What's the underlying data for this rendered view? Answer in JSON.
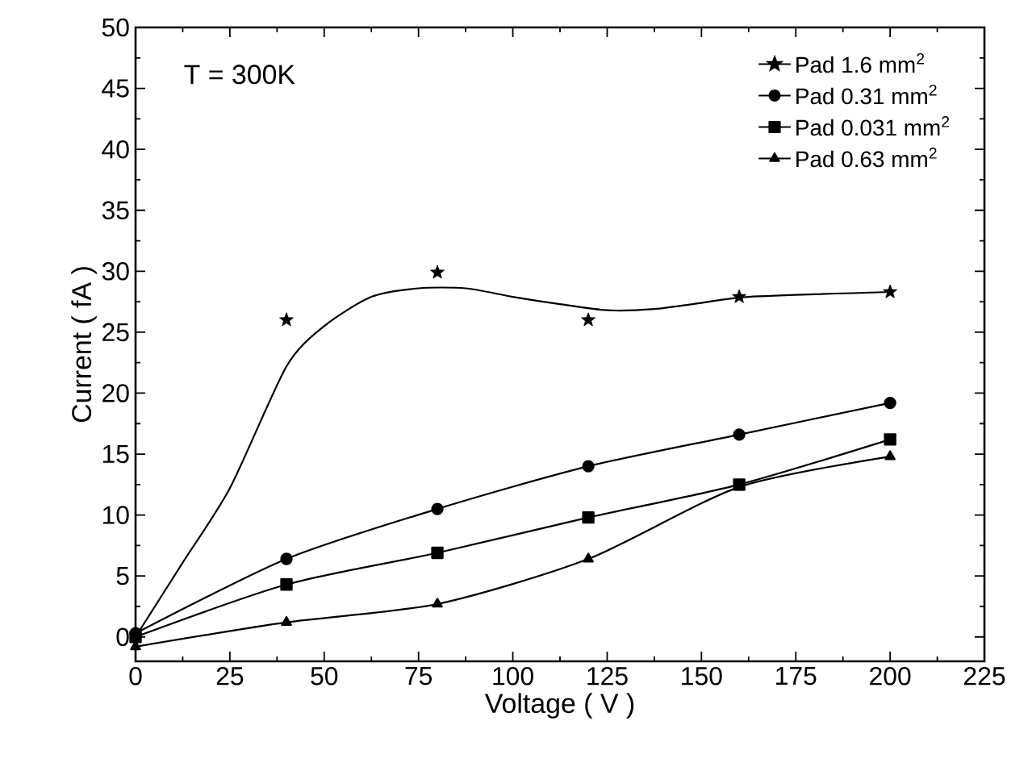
{
  "chart_data": {
    "type": "line",
    "xlabel": "Voltage  ( V )",
    "ylabel": "Current  ( fA )",
    "annotations": [
      "T = 300K"
    ],
    "xlim": [
      0,
      225
    ],
    "xticks": [
      0,
      25,
      50,
      75,
      100,
      125,
      150,
      175,
      200,
      225
    ],
    "ylim": [
      -2,
      50
    ],
    "yticks": [
      0,
      5,
      10,
      15,
      20,
      25,
      30,
      35,
      40,
      45,
      50
    ],
    "grid": false,
    "legend": "top right",
    "line_style": "solid",
    "x": [
      0,
      40,
      80,
      120,
      160,
      200
    ],
    "series": [
      {
        "name": "Pad 1.6 mm$^{2}$",
        "type": "scatter",
        "marker": "star",
        "color": "#000000",
        "values": [
          null,
          26.0,
          29.9,
          26.0,
          27.9,
          28.3
        ]
      },
      {
        "name": "Pad 0.31 mm$^{2}$",
        "marker": "circle",
        "color": "#000000",
        "values": [
          0.3,
          6.4,
          10.5,
          14.0,
          16.6,
          19.2
        ]
      },
      {
        "name": "Pad 0.031 mm$^{2}$",
        "marker": "square",
        "color": "#000000",
        "values": [
          0.0,
          4.3,
          6.9,
          9.8,
          12.5,
          16.2
        ]
      },
      {
        "name": "Pad 0.63 mm$^{2}$",
        "marker": "triangle",
        "color": "#000000",
        "values": [
          -0.8,
          1.2,
          2.7,
          6.4,
          12.3,
          14.8
        ]
      },
      {
        "marker": "none",
        "color": "#000000",
        "x": [
          0,
          12.5,
          25,
          40,
          50,
          62.5,
          75,
          87.5,
          100,
          112.5,
          125,
          137.5,
          150,
          162.5,
          200
        ],
        "values": [
          0.0,
          6.1,
          12.2,
          22.2,
          25.5,
          27.9,
          28.6,
          28.6,
          27.9,
          27.3,
          26.8,
          26.9,
          27.4,
          27.9,
          28.3
        ]
      }
    ]
  }
}
